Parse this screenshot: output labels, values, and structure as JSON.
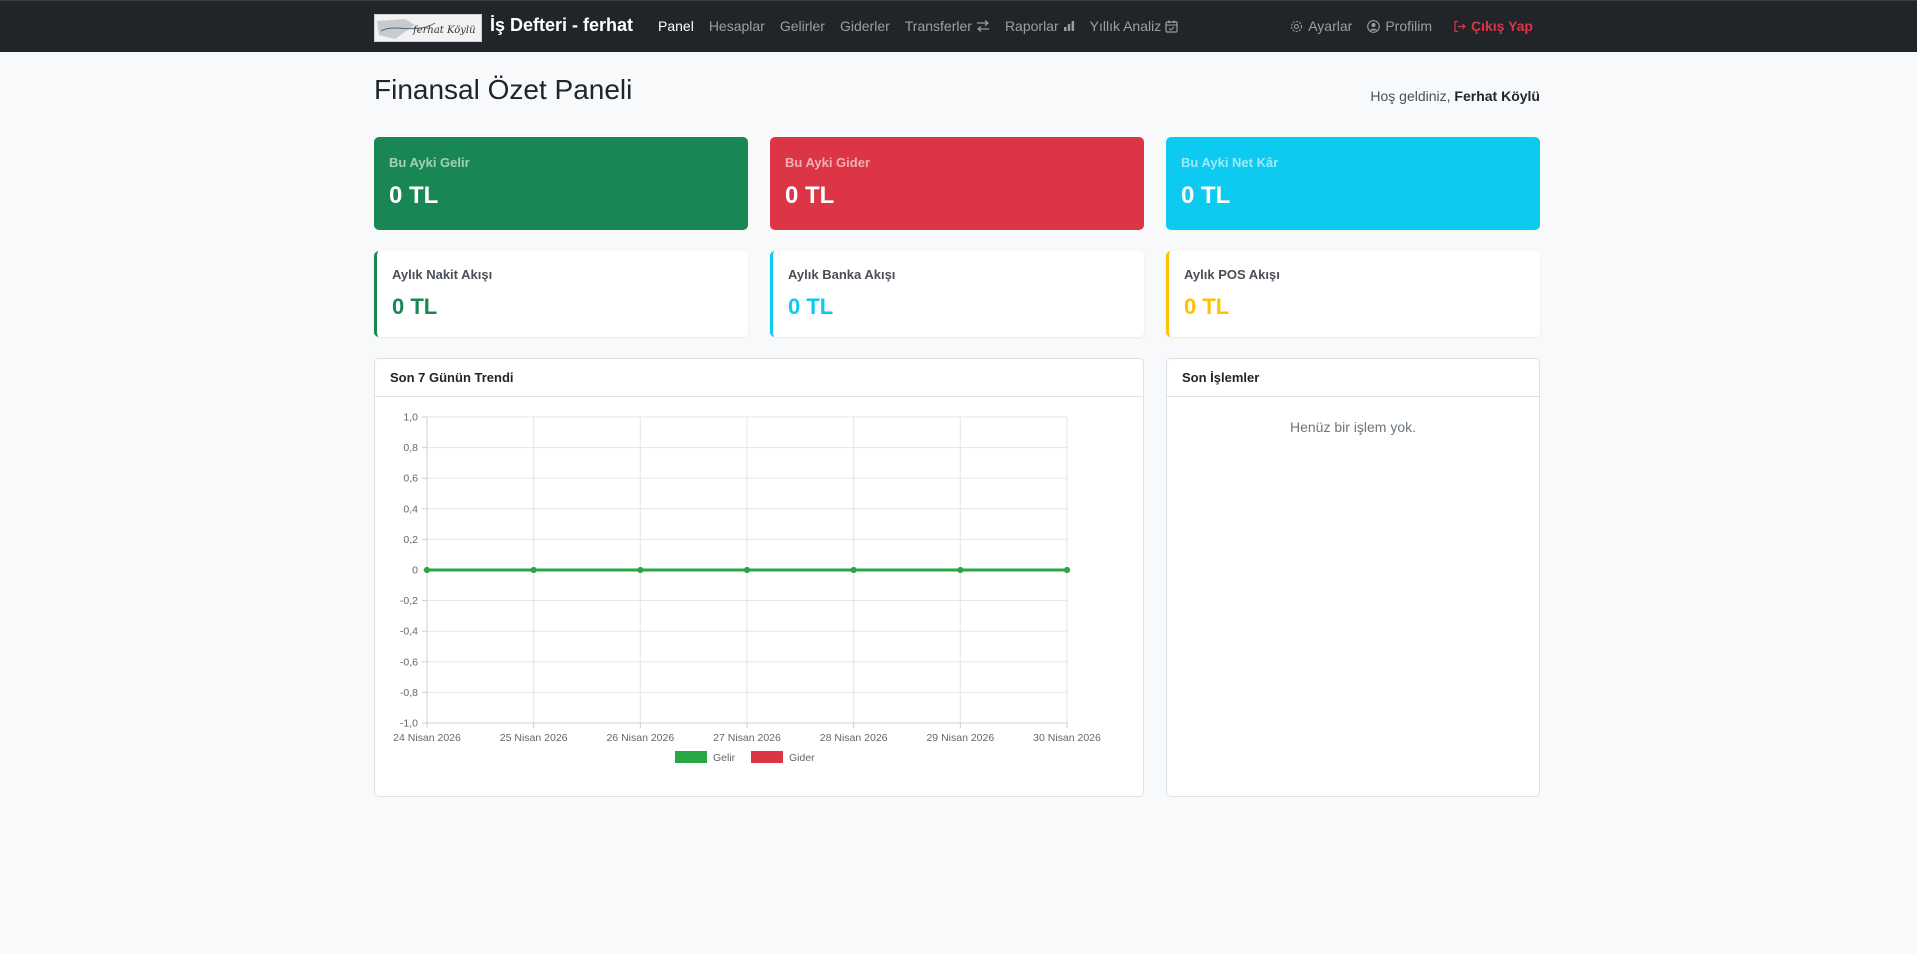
{
  "app": {
    "brand": "İş Defteri - ferhat",
    "logo_text": "ferhat Köylü"
  },
  "nav": {
    "items": [
      {
        "label": "Panel",
        "active": true
      },
      {
        "label": "Hesaplar"
      },
      {
        "label": "Gelirler"
      },
      {
        "label": "Giderler"
      },
      {
        "label": "Transferler",
        "icon": "arrows-exchange-icon"
      },
      {
        "label": "Raporlar",
        "icon": "bar-chart-icon"
      },
      {
        "label": "Yıllık Analiz",
        "icon": "calendar-check-icon"
      }
    ],
    "right": [
      {
        "label": "Ayarlar",
        "icon": "gear-icon"
      },
      {
        "label": "Profilim",
        "icon": "user-circle-icon"
      },
      {
        "label": "Çıkış Yap",
        "icon": "logout-icon",
        "color": "#dc3545"
      }
    ]
  },
  "header": {
    "title": "Finansal Özet Paneli",
    "welcome_prefix": "Hoş geldiniz,",
    "user_name": "Ferhat Köylü"
  },
  "stats": [
    {
      "label": "Bu Ayki Gelir",
      "value": "0 TL",
      "color": "#198754"
    },
    {
      "label": "Bu Ayki Gider",
      "value": "0 TL",
      "color": "#dc3545"
    },
    {
      "label": "Bu Ayki Net Kâr",
      "value": "0 TL",
      "color": "#0dcaf0"
    }
  ],
  "flows": [
    {
      "label": "Aylık Nakit Akışı",
      "value": "0 TL",
      "color": "#198754"
    },
    {
      "label": "Aylık Banka Akışı",
      "value": "0 TL",
      "color": "#0dcaf0"
    },
    {
      "label": "Aylık POS Akışı",
      "value": "0 TL",
      "color": "#ffc107"
    }
  ],
  "trend_panel": {
    "title": "Son 7 Günün Trendi"
  },
  "transactions_panel": {
    "title": "Son İşlemler",
    "empty_text": "Henüz bir işlem yok."
  },
  "chart_data": {
    "type": "line",
    "x": [
      "24 Nisan 2026",
      "25 Nisan 2026",
      "26 Nisan 2026",
      "27 Nisan 2026",
      "28 Nisan 2026",
      "29 Nisan 2026",
      "30 Nisan 2026"
    ],
    "series": [
      {
        "name": "Gelir",
        "values": [
          0,
          0,
          0,
          0,
          0,
          0,
          0
        ],
        "color": "#28a745"
      },
      {
        "name": "Gider",
        "values": [
          0,
          0,
          0,
          0,
          0,
          0,
          0
        ],
        "color": "#dc3545"
      }
    ],
    "yticks": [
      "1,0",
      "0,8",
      "0,6",
      "0,4",
      "0,2",
      "0",
      "-0,2",
      "-0,4",
      "-0,6",
      "-0,8",
      "-1,0"
    ],
    "ylim": [
      -1,
      1
    ],
    "grid": true,
    "legend": "bottom"
  }
}
